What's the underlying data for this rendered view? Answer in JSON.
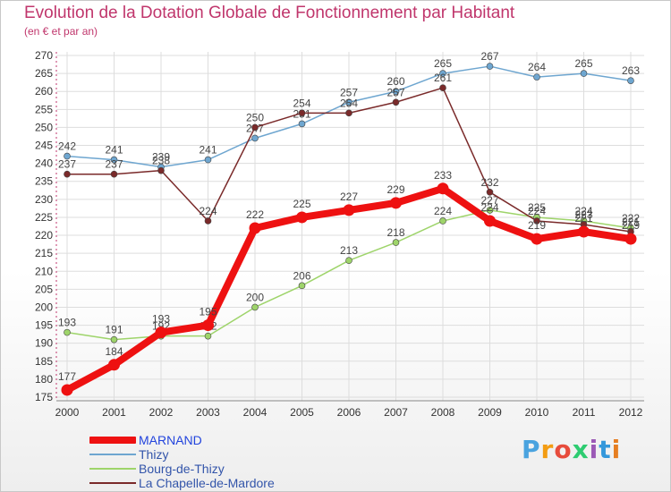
{
  "header": {
    "title": "Evolution de la Dotation Globale de Fonctionnement par Habitant",
    "subtitle": "(en € et par an)"
  },
  "colors": {
    "title": "#c0366c",
    "axis_text": "#333333",
    "grid": "#dddddd",
    "axis_line": "#c0366c"
  },
  "brand": {
    "letters": [
      "P",
      "r",
      "o",
      "x",
      "i",
      "t",
      "i"
    ],
    "letter_colors": [
      "#4aa3df",
      "#f39c12",
      "#e74c3c",
      "#2ecc71",
      "#9b59b6",
      "#3498db",
      "#e67e22"
    ]
  },
  "chart_data": {
    "type": "line",
    "title": "Evolution de la Dotation Globale de Fonctionnement par Habitant",
    "subtitle": "(en € et par an)",
    "xlabel": "",
    "ylabel": "",
    "categories": [
      "2000",
      "2001",
      "2002",
      "2003",
      "2004",
      "2005",
      "2006",
      "2007",
      "2008",
      "2009",
      "2010",
      "2011",
      "2012"
    ],
    "ylim": [
      175,
      270
    ],
    "yticks": [
      175,
      180,
      185,
      190,
      195,
      200,
      205,
      210,
      215,
      220,
      225,
      230,
      235,
      240,
      245,
      250,
      255,
      260,
      265,
      270
    ],
    "grid": true,
    "legend_position": "bottom-left",
    "series": [
      {
        "name": "MARNAND",
        "color": "#ee1111",
        "bold": true,
        "values": [
          177,
          184,
          193,
          195,
          222,
          225,
          227,
          229,
          233,
          224,
          219,
          221,
          219
        ],
        "labels": [
          "177",
          "184",
          "193",
          "195",
          "222",
          "225",
          "227",
          "229",
          "233",
          "224",
          "219",
          "221",
          "219"
        ]
      },
      {
        "name": "Thizy",
        "color": "#6ea6d0",
        "bold": false,
        "values": [
          242,
          241,
          239,
          241,
          247,
          251,
          257,
          260,
          265,
          267,
          264,
          265,
          263
        ],
        "labels": [
          "242",
          "241",
          "239",
          "241",
          "247",
          "251",
          "257",
          "260",
          "265",
          "267",
          "264",
          "265",
          "263"
        ]
      },
      {
        "name": "Bourg-de-Thizy",
        "color": "#9ed46a",
        "bold": false,
        "values": [
          193,
          191,
          192,
          192,
          200,
          206,
          213,
          218,
          224,
          227,
          225,
          224,
          222
        ],
        "labels": [
          "193",
          "191",
          "192",
          "192",
          "200",
          "206",
          "213",
          "218",
          "224",
          "227",
          "225",
          "224",
          "222"
        ]
      },
      {
        "name": "La Chapelle-de-Mardore",
        "color": "#7a2a2a",
        "bold": false,
        "values": [
          237,
          237,
          238,
          224,
          250,
          254,
          254,
          257,
          261,
          232,
          224,
          223,
          221
        ],
        "labels": [
          "237",
          "237",
          "238",
          "224",
          "250",
          "254",
          "254",
          "257",
          "261",
          "232",
          "224",
          "223",
          "221"
        ]
      }
    ]
  }
}
